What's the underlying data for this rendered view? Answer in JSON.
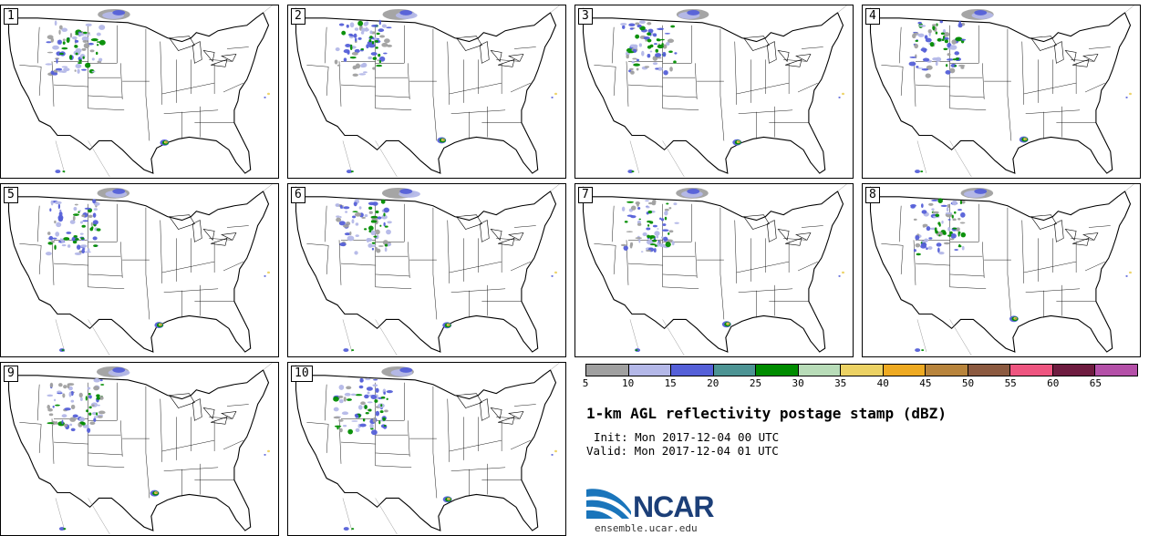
{
  "panels": [
    {
      "label": "1"
    },
    {
      "label": "2"
    },
    {
      "label": "3"
    },
    {
      "label": "4"
    },
    {
      "label": "5"
    },
    {
      "label": "6"
    },
    {
      "label": "7"
    },
    {
      "label": "8"
    },
    {
      "label": "9"
    },
    {
      "label": "10"
    }
  ],
  "legend": {
    "colors": [
      "#a0a0a0",
      "#b4b8e8",
      "#5560d8",
      "#4d9494",
      "#008c00",
      "#b8dcb8",
      "#ecd264",
      "#eeaa22",
      "#b8843c",
      "#8c5a40",
      "#ee5580",
      "#6e1c40",
      "#b450a8"
    ],
    "ticks": [
      "5",
      "10",
      "15",
      "20",
      "25",
      "30",
      "35",
      "40",
      "45",
      "50",
      "55",
      "60",
      "65"
    ]
  },
  "title": "1-km AGL reflectivity postage stamp (dBZ)",
  "init": "Init: Mon 2017-12-04 00 UTC",
  "valid": "Valid: Mon 2017-12-04 01 UTC",
  "logo": {
    "name": "NCAR",
    "url": "ensemble.ucar.edu",
    "colors": {
      "swoosh": "#1a75bb",
      "text": "#1c3f78"
    }
  }
}
